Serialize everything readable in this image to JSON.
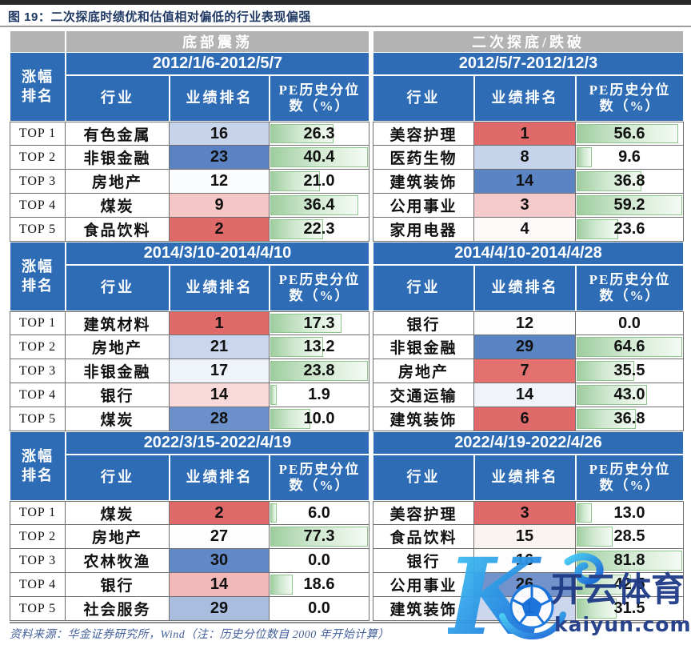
{
  "page_title": "图 19：二次探底时绩优和估值相对偏低的行业表现偏强",
  "phase_header": {
    "left": "底部震荡",
    "right": "二次探底/跌破"
  },
  "rank_column_header": {
    "line1": "涨幅",
    "line2": "排名"
  },
  "rank_labels": [
    "TOP 1",
    "TOP 2",
    "TOP 3",
    "TOP 4",
    "TOP 5"
  ],
  "chart_data": {
    "type": "table",
    "figure_label": "图 19",
    "title": "二次探底时绩优和估值相对偏低的行业表现偏强",
    "column_groups": [
      "底部震荡",
      "二次探底/跌破"
    ],
    "columns": {
      "industry": "行业",
      "perf_rank": "业绩排名",
      "pe_line1": "PE历史分位",
      "pe_line2": "数（%）"
    },
    "sections": [
      {
        "left": {
          "date_range": "2012/1/6-2012/5/7",
          "rows": [
            {
              "industry": "有色金属",
              "perf_rank": "16",
              "rank_bg": "#c7d4ec",
              "pe": "26.3",
              "bar": 0.65
            },
            {
              "industry": "非银金融",
              "perf_rank": "23",
              "rank_bg": "#5b83c4",
              "pe": "40.4",
              "bar": 1.0
            },
            {
              "industry": "房地产",
              "perf_rank": "12",
              "rank_bg": "#fbfcfe",
              "pe": "21.0",
              "bar": 0.52
            },
            {
              "industry": "煤炭",
              "perf_rank": "9",
              "rank_bg": "#f4c6c6",
              "pe": "36.4",
              "bar": 0.9
            },
            {
              "industry": "食品饮料",
              "perf_rank": "2",
              "rank_bg": "#e0696a",
              "pe": "22.3",
              "bar": 0.55
            }
          ]
        },
        "right": {
          "date_range": "2012/5/7-2012/12/3",
          "rows": [
            {
              "industry": "美容护理",
              "perf_rank": "1",
              "rank_bg": "#e0696a",
              "pe": "56.6",
              "bar": 0.96
            },
            {
              "industry": "医药生物",
              "perf_rank": "8",
              "rank_bg": "#c5d3eb",
              "pe": "9.6",
              "bar": 0.16
            },
            {
              "industry": "建筑装饰",
              "perf_rank": "14",
              "rank_bg": "#5b84c4",
              "pe": "36.8",
              "bar": 0.62
            },
            {
              "industry": "公用事业",
              "perf_rank": "3",
              "rank_bg": "#f5caca",
              "pe": "59.2",
              "bar": 1.0
            },
            {
              "industry": "家用电器",
              "perf_rank": "4",
              "rank_bg": "#fdf9f9",
              "pe": "23.6",
              "bar": 0.4
            }
          ]
        }
      },
      {
        "left": {
          "date_range": "2014/3/10-2014/4/10",
          "rows": [
            {
              "industry": "建筑材料",
              "perf_rank": "1",
              "rank_bg": "#e0696a",
              "pe": "17.3",
              "bar": 0.73
            },
            {
              "industry": "房地产",
              "perf_rank": "21",
              "rank_bg": "#c9d6ed",
              "pe": "13.2",
              "bar": 0.55
            },
            {
              "industry": "非银金融",
              "perf_rank": "17",
              "rank_bg": "#eff3fa",
              "pe": "23.8",
              "bar": 1.0
            },
            {
              "industry": "银行",
              "perf_rank": "14",
              "rank_bg": "#f8dada",
              "pe": "1.9",
              "bar": 0.08
            },
            {
              "industry": "煤炭",
              "perf_rank": "28",
              "rank_bg": "#6c90ca",
              "pe": "10.0",
              "bar": 0.42
            }
          ]
        },
        "right": {
          "date_range": "2014/4/10-2014/4/28",
          "rows": [
            {
              "industry": "银行",
              "perf_rank": "12",
              "rank_bg": "#fdfdfe",
              "pe": "0.0",
              "bar": 0
            },
            {
              "industry": "非银金融",
              "perf_rank": "29",
              "rank_bg": "#5b84c4",
              "pe": "64.6",
              "bar": 1.0
            },
            {
              "industry": "房地产",
              "perf_rank": "7",
              "rank_bg": "#e2716f",
              "pe": "35.5",
              "bar": 0.55
            },
            {
              "industry": "交通运输",
              "perf_rank": "14",
              "rank_bg": "#f0f3fa",
              "pe": "43.0",
              "bar": 0.67
            },
            {
              "industry": "建筑装饰",
              "perf_rank": "6",
              "rank_bg": "#e0696a",
              "pe": "36.8",
              "bar": 0.57
            }
          ]
        }
      },
      {
        "left": {
          "date_range": "2022/3/15-2022/4/19",
          "rows": [
            {
              "industry": "煤炭",
              "perf_rank": "2",
              "rank_bg": "#e0696a",
              "pe": "6.0",
              "bar": 0.08
            },
            {
              "industry": "房地产",
              "perf_rank": "27",
              "rank_bg": "#fdfdfe",
              "pe": "77.3",
              "bar": 1.0
            },
            {
              "industry": "农林牧渔",
              "perf_rank": "30",
              "rank_bg": "#6289c7",
              "pe": "0.0",
              "bar": 0
            },
            {
              "industry": "银行",
              "perf_rank": "14",
              "rank_bg": "#f3b9b9",
              "pe": "18.6",
              "bar": 0.24
            },
            {
              "industry": "社会服务",
              "perf_rank": "29",
              "rank_bg": "#a9bedf",
              "pe": "0.0",
              "bar": 0
            }
          ]
        },
        "right": {
          "date_range": "2022/4/19-2022/4/26",
          "rows": [
            {
              "industry": "美容护理",
              "perf_rank": "3",
              "rank_bg": "#e0696a",
              "pe": "13.0",
              "bar": 0.16
            },
            {
              "industry": "食品饮料",
              "perf_rank": "15",
              "rank_bg": "#fbf2f2",
              "pe": "28.5",
              "bar": 0.35
            },
            {
              "industry": "银行",
              "perf_rank": "16",
              "rank_bg": "#fdfdfe",
              "pe": "81.8",
              "bar": 1.0
            },
            {
              "industry": "公用事业",
              "perf_rank": "26",
              "rank_bg": "#7292cb",
              "pe": "42.5",
              "bar": 0.52
            },
            {
              "industry": "建筑装饰",
              "perf_rank": "21",
              "rank_bg": "#ccd7ed",
              "pe": "31.5",
              "bar": 0.39
            }
          ]
        }
      }
    ]
  },
  "source_note": "资料来源：华金证券研究所，Wind（注：历史分位数自 2000 年开始计算）",
  "watermark": {
    "brand": "开云体育",
    "domain": "kaiyun.com"
  },
  "colors": {
    "header_blue": "#2e6db6",
    "phase_gray": "#b3b3b3",
    "title_navy": "#1f3864",
    "rank_red": "#e0696a",
    "rank_blue": "#5b84c4",
    "bar_green": "#9fcd9f",
    "watermark_navy": "#1e3a86"
  }
}
